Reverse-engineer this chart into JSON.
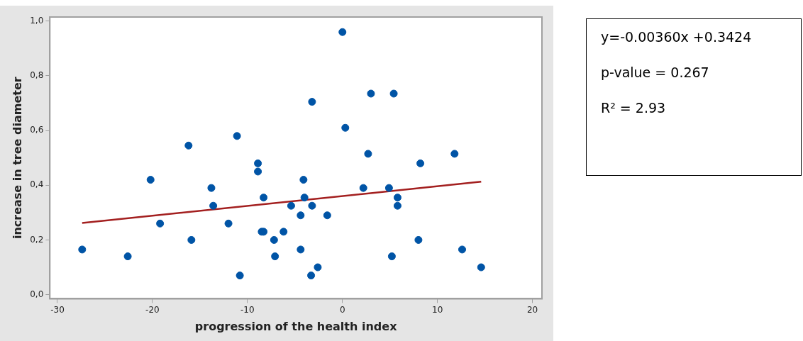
{
  "chart_data": {
    "type": "scatter",
    "xlabel": "progression of the health index",
    "ylabel": "increase in tree diameter",
    "xlim": [
      -30.8,
      21
    ],
    "ylim": [
      -0.015,
      1.015
    ],
    "xticks": [
      -30,
      -20,
      -10,
      0,
      10,
      20
    ],
    "yticks": [
      {
        "value": 0,
        "label": "0,0"
      },
      {
        "value": 0.2,
        "label": "0,2"
      },
      {
        "value": 0.4,
        "label": "0,4"
      },
      {
        "value": 0.6,
        "label": "0,6"
      },
      {
        "value": 0.8,
        "label": "0,8"
      },
      {
        "value": 1,
        "label": "1,0"
      }
    ],
    "grid": false,
    "legend": false,
    "series": [
      {
        "marker": "circle",
        "color": "#0054a6",
        "x": [
          -27.4,
          -22.6,
          -20.2,
          -19.2,
          -16.2,
          -15.9,
          -13.8,
          -13.6,
          -12.0,
          -11.1,
          -10.8,
          -8.9,
          -8.9,
          -8.3,
          -8.5,
          -8.3,
          -7.2,
          -7.1,
          -6.2,
          -5.4,
          -4.4,
          -4.4,
          -4.1,
          -4.0,
          -3.3,
          -3.2,
          -3.2,
          -2.6,
          -1.6,
          0.0,
          0.3,
          2.2,
          2.7,
          3.0,
          4.9,
          5.2,
          5.4,
          5.8,
          5.8,
          8.0,
          8.2,
          11.8,
          12.6,
          14.6
        ],
        "values": [
          0.165,
          0.14,
          0.42,
          0.26,
          0.545,
          0.2,
          0.39,
          0.325,
          0.26,
          0.58,
          0.07,
          0.48,
          0.45,
          0.355,
          0.23,
          0.23,
          0.2,
          0.14,
          0.23,
          0.325,
          0.165,
          0.29,
          0.42,
          0.355,
          0.07,
          0.705,
          0.325,
          0.1,
          0.29,
          0.96,
          0.61,
          0.39,
          0.515,
          0.735,
          0.39,
          0.14,
          0.735,
          0.355,
          0.325,
          0.2,
          0.48,
          0.515,
          0.165,
          0.1
        ]
      },
      {
        "type": "line",
        "marker": "none",
        "color": "#a31f1f",
        "x": [
          -27.4,
          14.6
        ],
        "values": [
          0.262,
          0.413
        ]
      }
    ],
    "annotations": [
      "y=-0.00360x +0.3424",
      "p-value = 0.267",
      "R² = 2.93"
    ]
  }
}
